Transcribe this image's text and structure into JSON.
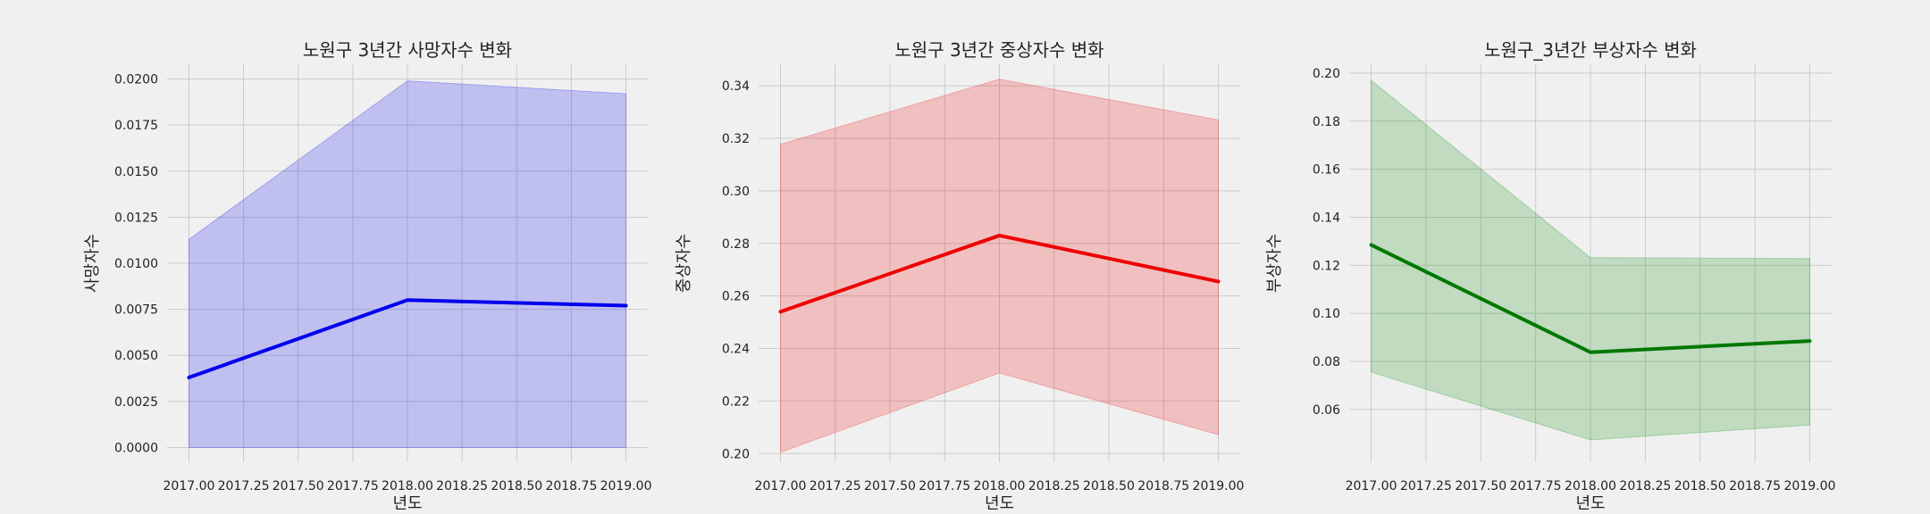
{
  "chart_data": [
    {
      "type": "line",
      "title": "노원구 3년간 사망자수 변화",
      "xlabel": "년도",
      "ylabel": "사망자수",
      "x": [
        2017.0,
        2018.0,
        2019.0
      ],
      "series": [
        {
          "values": [
            0.0038,
            0.008,
            0.0077
          ],
          "ci_lower": [
            0.0,
            0.0,
            0.0
          ],
          "ci_upper": [
            0.0113,
            0.0199,
            0.0192
          ],
          "color": "#0000ee",
          "fill": "#0000ee",
          "fill_opacity": 0.2
        }
      ],
      "xlim": [
        2016.9,
        2019.1
      ],
      "ylim": [
        -0.0008,
        0.0208
      ],
      "xticks": [
        2017.0,
        2017.25,
        2017.5,
        2017.75,
        2018.0,
        2018.25,
        2018.5,
        2018.75,
        2019.0
      ],
      "xtick_labels": [
        "2017.00",
        "2017.25",
        "2017.50",
        "2017.75",
        "2018.00",
        "2018.25",
        "2018.50",
        "2018.75",
        "2019.00"
      ],
      "yticks": [
        0.0,
        0.0025,
        0.005,
        0.0075,
        0.01,
        0.0125,
        0.015,
        0.0175,
        0.02
      ],
      "ytick_labels": [
        "0.0000",
        "0.0025",
        "0.0050",
        "0.0075",
        "0.0100",
        "0.0125",
        "0.0150",
        "0.0175",
        "0.0200"
      ],
      "grid": true
    },
    {
      "type": "line",
      "title": "노원구 3년간 중상자수 변화",
      "xlabel": "년도",
      "ylabel": "중상자수",
      "x": [
        2017.0,
        2018.0,
        2019.0
      ],
      "series": [
        {
          "values": [
            0.254,
            0.283,
            0.2655
          ],
          "ci_lower": [
            0.2005,
            0.2307,
            0.2072
          ],
          "ci_upper": [
            0.3177,
            0.3425,
            0.327
          ],
          "color": "#ee0000",
          "fill": "#ee0000",
          "fill_opacity": 0.2
        }
      ],
      "xlim": [
        2016.9,
        2019.1
      ],
      "ylim": [
        0.1967,
        0.3482
      ],
      "xticks": [
        2017.0,
        2017.25,
        2017.5,
        2017.75,
        2018.0,
        2018.25,
        2018.5,
        2018.75,
        2019.0
      ],
      "xtick_labels": [
        "2017.00",
        "2017.25",
        "2017.50",
        "2017.75",
        "2018.00",
        "2018.25",
        "2018.50",
        "2018.75",
        "2019.00"
      ],
      "yticks": [
        0.2,
        0.22,
        0.24,
        0.26,
        0.28,
        0.3,
        0.32,
        0.34
      ],
      "ytick_labels": [
        "0.20",
        "0.22",
        "0.24",
        "0.26",
        "0.28",
        "0.30",
        "0.32",
        "0.34"
      ],
      "grid": true
    },
    {
      "type": "line",
      "title": "노원구_3년간 부상자수 변화",
      "xlabel": "년도",
      "ylabel": "부상자수",
      "x": [
        2017.0,
        2018.0,
        2019.0
      ],
      "series": [
        {
          "values": [
            0.1285,
            0.0838,
            0.0885
          ],
          "ci_lower": [
            0.0755,
            0.0473,
            0.0535
          ],
          "ci_upper": [
            0.197,
            0.1232,
            0.1228
          ],
          "color": "#007700",
          "fill": "#008800",
          "fill_opacity": 0.2
        }
      ],
      "xlim": [
        2016.9,
        2019.1
      ],
      "ylim": [
        0.038,
        0.2037
      ],
      "xticks": [
        2017.0,
        2017.25,
        2017.5,
        2017.75,
        2018.0,
        2018.25,
        2018.5,
        2018.75,
        2019.0
      ],
      "xtick_labels": [
        "2017.00",
        "2017.25",
        "2017.50",
        "2017.75",
        "2018.00",
        "2018.25",
        "2018.50",
        "2018.75",
        "2019.00"
      ],
      "yticks": [
        0.06,
        0.08,
        0.1,
        0.12,
        0.14,
        0.16,
        0.18,
        0.2
      ],
      "ytick_labels": [
        "0.06",
        "0.08",
        "0.10",
        "0.12",
        "0.14",
        "0.16",
        "0.18",
        "0.20"
      ],
      "grid": true
    }
  ]
}
